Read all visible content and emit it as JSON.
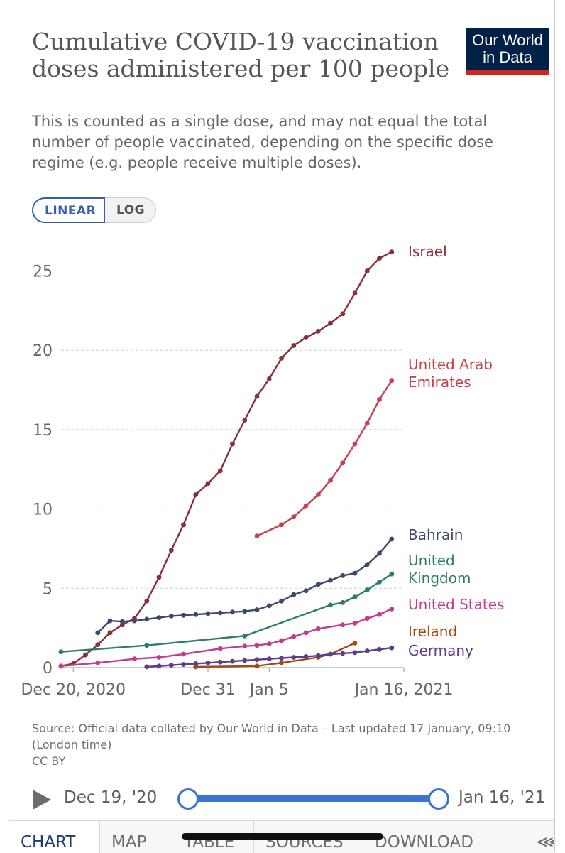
{
  "header": {
    "title": "Cumulative COVID-19 vaccination doses administered per 100 people",
    "subtitle": "This is counted as a single dose, and may not equal the total number of people vaccinated, depending on the specific dose regime (e.g. people receive multiple doses).",
    "logo_line1": "Our World",
    "logo_line2": "in Data"
  },
  "scale_toggle": {
    "linear": "LINEAR",
    "log": "LOG",
    "selected": "LINEAR"
  },
  "chart_data": {
    "type": "line",
    "ylim": [
      0,
      26.5
    ],
    "yticks": [
      0,
      5,
      10,
      15,
      20,
      25
    ],
    "x_start": "2020-12-19",
    "x_end": "2021-01-16",
    "xtick_labels": [
      {
        "date": "2020-12-20",
        "label": "Dec 20, 2020"
      },
      {
        "date": "2020-12-31",
        "label": "Dec 31"
      },
      {
        "date": "2021-01-05",
        "label": "Jan 5"
      },
      {
        "date": "2021-01-16",
        "label": "Jan 16, 2021"
      }
    ],
    "grid": "horizontal dashed",
    "series": [
      {
        "name": "Israel",
        "color": "#883039",
        "label_lines": [
          "Israel"
        ],
        "points": [
          [
            "2020-12-19",
            0.1
          ],
          [
            "2020-12-20",
            0.25
          ],
          [
            "2020-12-21",
            0.8
          ],
          [
            "2020-12-22",
            1.45
          ],
          [
            "2020-12-23",
            2.2
          ],
          [
            "2020-12-24",
            2.7
          ],
          [
            "2020-12-25",
            3.1
          ],
          [
            "2020-12-26",
            4.2
          ],
          [
            "2020-12-27",
            5.7
          ],
          [
            "2020-12-28",
            7.4
          ],
          [
            "2020-12-29",
            9.0
          ],
          [
            "2020-12-30",
            10.9
          ],
          [
            "2020-12-31",
            11.6
          ],
          [
            "2021-01-01",
            12.4
          ],
          [
            "2021-01-02",
            14.1
          ],
          [
            "2021-01-03",
            15.6
          ],
          [
            "2021-01-04",
            17.1
          ],
          [
            "2021-01-05",
            18.2
          ],
          [
            "2021-01-06",
            19.5
          ],
          [
            "2021-01-07",
            20.3
          ],
          [
            "2021-01-08",
            20.8
          ],
          [
            "2021-01-09",
            21.2
          ],
          [
            "2021-01-10",
            21.7
          ],
          [
            "2021-01-11",
            22.3
          ],
          [
            "2021-01-12",
            23.6
          ],
          [
            "2021-01-13",
            25.0
          ],
          [
            "2021-01-14",
            25.8
          ],
          [
            "2021-01-15",
            26.2
          ]
        ]
      },
      {
        "name": "United Arab Emirates",
        "color": "#c4414f",
        "label_lines": [
          "United Arab",
          "Emirates"
        ],
        "points": [
          [
            "2021-01-04",
            8.3
          ],
          [
            "2021-01-06",
            9.0
          ],
          [
            "2021-01-07",
            9.5
          ],
          [
            "2021-01-08",
            10.2
          ],
          [
            "2021-01-09",
            10.9
          ],
          [
            "2021-01-10",
            11.8
          ],
          [
            "2021-01-11",
            12.9
          ],
          [
            "2021-01-12",
            14.1
          ],
          [
            "2021-01-13",
            15.4
          ],
          [
            "2021-01-14",
            16.9
          ],
          [
            "2021-01-15",
            18.1
          ]
        ]
      },
      {
        "name": "Bahrain",
        "color": "#3b4a6b",
        "label_lines": [
          "Bahrain"
        ],
        "points": [
          [
            "2020-12-22",
            2.2
          ],
          [
            "2020-12-23",
            2.95
          ],
          [
            "2020-12-24",
            2.9
          ],
          [
            "2020-12-25",
            2.95
          ],
          [
            "2020-12-26",
            3.05
          ],
          [
            "2020-12-27",
            3.15
          ],
          [
            "2020-12-28",
            3.25
          ],
          [
            "2020-12-29",
            3.3
          ],
          [
            "2020-12-30",
            3.35
          ],
          [
            "2020-12-31",
            3.4
          ],
          [
            "2021-01-01",
            3.45
          ],
          [
            "2021-01-02",
            3.5
          ],
          [
            "2021-01-03",
            3.55
          ],
          [
            "2021-01-04",
            3.65
          ],
          [
            "2021-01-05",
            3.9
          ],
          [
            "2021-01-06",
            4.2
          ],
          [
            "2021-01-07",
            4.6
          ],
          [
            "2021-01-08",
            4.85
          ],
          [
            "2021-01-09",
            5.25
          ],
          [
            "2021-01-10",
            5.5
          ],
          [
            "2021-01-11",
            5.8
          ],
          [
            "2021-01-12",
            5.95
          ],
          [
            "2021-01-13",
            6.5
          ],
          [
            "2021-01-14",
            7.2
          ],
          [
            "2021-01-15",
            8.1
          ]
        ]
      },
      {
        "name": "United Kingdom",
        "color": "#2e7d6a",
        "label_lines": [
          "United",
          "Kingdom"
        ],
        "points": [
          [
            "2020-12-19",
            1.0
          ],
          [
            "2020-12-26",
            1.4
          ],
          [
            "2021-01-03",
            2.0
          ],
          [
            "2021-01-10",
            3.95
          ],
          [
            "2021-01-11",
            4.1
          ],
          [
            "2021-01-12",
            4.45
          ],
          [
            "2021-01-13",
            4.9
          ],
          [
            "2021-01-14",
            5.4
          ],
          [
            "2021-01-15",
            5.9
          ]
        ]
      },
      {
        "name": "United States",
        "color": "#c03c8c",
        "label_lines": [
          "United States"
        ],
        "points": [
          [
            "2020-12-19",
            0.1
          ],
          [
            "2020-12-22",
            0.3
          ],
          [
            "2020-12-25",
            0.55
          ],
          [
            "2020-12-27",
            0.65
          ],
          [
            "2020-12-29",
            0.85
          ],
          [
            "2021-01-01",
            1.2
          ],
          [
            "2021-01-03",
            1.35
          ],
          [
            "2021-01-04",
            1.4
          ],
          [
            "2021-01-05",
            1.5
          ],
          [
            "2021-01-06",
            1.7
          ],
          [
            "2021-01-07",
            1.95
          ],
          [
            "2021-01-08",
            2.2
          ],
          [
            "2021-01-09",
            2.45
          ],
          [
            "2021-01-11",
            2.7
          ],
          [
            "2021-01-12",
            2.8
          ],
          [
            "2021-01-13",
            3.1
          ],
          [
            "2021-01-14",
            3.35
          ],
          [
            "2021-01-15",
            3.7
          ]
        ]
      },
      {
        "name": "Ireland",
        "color": "#a24a10",
        "label_lines": [
          "Ireland"
        ],
        "points": [
          [
            "2020-12-30",
            0.05
          ],
          [
            "2021-01-04",
            0.1
          ],
          [
            "2021-01-06",
            0.3
          ],
          [
            "2021-01-09",
            0.65
          ],
          [
            "2021-01-10",
            0.85
          ],
          [
            "2021-01-12",
            1.55
          ]
        ]
      },
      {
        "name": "Germany",
        "color": "#5a3d8d",
        "label_lines": [
          "Germany"
        ],
        "points": [
          [
            "2020-12-26",
            0.05
          ],
          [
            "2020-12-27",
            0.1
          ],
          [
            "2020-12-28",
            0.15
          ],
          [
            "2020-12-29",
            0.2
          ],
          [
            "2020-12-30",
            0.25
          ],
          [
            "2020-12-31",
            0.3
          ],
          [
            "2021-01-01",
            0.35
          ],
          [
            "2021-01-02",
            0.4
          ],
          [
            "2021-01-03",
            0.45
          ],
          [
            "2021-01-04",
            0.5
          ],
          [
            "2021-01-05",
            0.55
          ],
          [
            "2021-01-06",
            0.6
          ],
          [
            "2021-01-07",
            0.65
          ],
          [
            "2021-01-08",
            0.7
          ],
          [
            "2021-01-09",
            0.75
          ],
          [
            "2021-01-10",
            0.85
          ],
          [
            "2021-01-11",
            0.9
          ],
          [
            "2021-01-12",
            0.95
          ],
          [
            "2021-01-13",
            1.05
          ],
          [
            "2021-01-14",
            1.15
          ],
          [
            "2021-01-15",
            1.25
          ]
        ]
      }
    ]
  },
  "source_text": "Source: Official data collated by Our World in Data – Last updated 17 January, 09:10 (London time)",
  "license_text": "CC BY",
  "timeline": {
    "start_label": "Dec 19, '20",
    "end_label": "Jan 16, '21"
  },
  "tabs": [
    {
      "label": "CHART"
    },
    {
      "label": "MAP"
    },
    {
      "label": "TABLE"
    },
    {
      "label": "SOURCES"
    },
    {
      "label": "DOWNLOAD"
    }
  ]
}
